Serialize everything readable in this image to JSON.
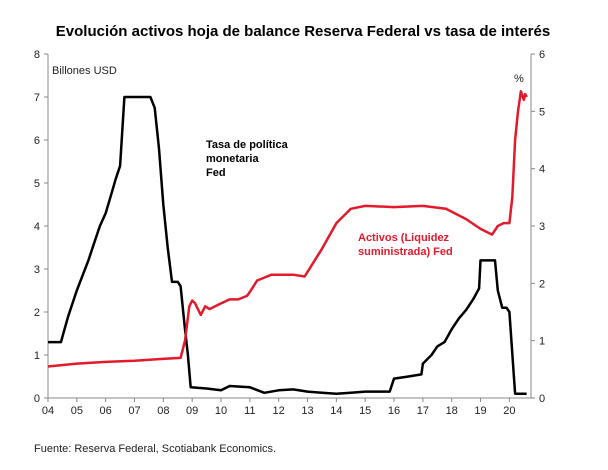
{
  "chart_data": {
    "type": "line",
    "title": "Evolución activos hoja de balance Reserva Federal vs tasa de interés",
    "left_axis_label": "Billones USD",
    "right_axis_label": "%",
    "x_ticks": [
      "04",
      "05",
      "06",
      "07",
      "08",
      "09",
      "10",
      "11",
      "12",
      "13",
      "14",
      "15",
      "16",
      "17",
      "18",
      "19",
      "20"
    ],
    "xlim": [
      2004.0,
      2020.75
    ],
    "ylim_left": [
      0,
      8
    ],
    "ylim_right": [
      0,
      6
    ],
    "y_ticks_left": [
      "0",
      "1",
      "2",
      "3",
      "4",
      "5",
      "6",
      "7",
      "8"
    ],
    "y_ticks_right": [
      "0",
      "1",
      "2",
      "3",
      "4",
      "5",
      "6"
    ],
    "annotations": [
      {
        "text": "Tasa de política",
        "color": "#000000"
      },
      {
        "text": "monetaria",
        "color": "#000000"
      },
      {
        "text": "Fed",
        "color": "#000000"
      },
      {
        "text": "Activos (Liquidez",
        "color": "#e3192c"
      },
      {
        "text": "suministrada) Fed",
        "color": "#e3192c"
      }
    ],
    "series": [
      {
        "axis": "left",
        "color": "#000000",
        "points": [
          [
            2004.0,
            1.3
          ],
          [
            2004.45,
            1.3
          ],
          [
            2004.55,
            1.55
          ],
          [
            2004.7,
            1.9
          ],
          [
            2004.85,
            2.2
          ],
          [
            2005.0,
            2.5
          ],
          [
            2005.2,
            2.85
          ],
          [
            2005.4,
            3.2
          ],
          [
            2005.6,
            3.6
          ],
          [
            2005.8,
            4.0
          ],
          [
            2006.0,
            4.3
          ],
          [
            2006.2,
            4.75
          ],
          [
            2006.35,
            5.1
          ],
          [
            2006.5,
            5.4
          ],
          [
            2006.65,
            7.0
          ],
          [
            2007.0,
            7.0
          ],
          [
            2007.55,
            7.0
          ],
          [
            2007.7,
            6.75
          ],
          [
            2007.85,
            5.8
          ],
          [
            2008.0,
            4.5
          ],
          [
            2008.15,
            3.5
          ],
          [
            2008.3,
            2.7
          ],
          [
            2008.5,
            2.7
          ],
          [
            2008.6,
            2.6
          ],
          [
            2008.75,
            1.6
          ],
          [
            2008.85,
            1.0
          ],
          [
            2008.95,
            0.25
          ],
          [
            2009.5,
            0.22
          ],
          [
            2010.0,
            0.18
          ],
          [
            2010.3,
            0.28
          ],
          [
            2011.0,
            0.25
          ],
          [
            2011.5,
            0.12
          ],
          [
            2012.0,
            0.18
          ],
          [
            2012.5,
            0.2
          ],
          [
            2013.0,
            0.15
          ],
          [
            2013.5,
            0.12
          ],
          [
            2014.0,
            0.1
          ],
          [
            2014.5,
            0.12
          ],
          [
            2015.0,
            0.15
          ],
          [
            2015.85,
            0.15
          ],
          [
            2016.0,
            0.45
          ],
          [
            2016.5,
            0.5
          ],
          [
            2016.95,
            0.55
          ],
          [
            2017.0,
            0.8
          ],
          [
            2017.3,
            1.0
          ],
          [
            2017.5,
            1.2
          ],
          [
            2017.75,
            1.3
          ],
          [
            2018.0,
            1.6
          ],
          [
            2018.25,
            1.85
          ],
          [
            2018.5,
            2.05
          ],
          [
            2018.75,
            2.3
          ],
          [
            2018.95,
            2.55
          ],
          [
            2019.0,
            3.2
          ],
          [
            2019.5,
            3.2
          ],
          [
            2019.6,
            2.5
          ],
          [
            2019.75,
            2.1
          ],
          [
            2019.9,
            2.1
          ],
          [
            2020.0,
            2.0
          ],
          [
            2020.2,
            0.1
          ],
          [
            2020.6,
            0.1
          ]
        ]
      },
      {
        "axis": "right",
        "color": "#e3192c",
        "points": [
          [
            2004.0,
            0.55
          ],
          [
            2005.0,
            0.6
          ],
          [
            2006.0,
            0.63
          ],
          [
            2007.0,
            0.65
          ],
          [
            2007.9,
            0.68
          ],
          [
            2008.6,
            0.7
          ],
          [
            2008.75,
            1.0
          ],
          [
            2008.9,
            1.6
          ],
          [
            2009.0,
            1.7
          ],
          [
            2009.1,
            1.65
          ],
          [
            2009.3,
            1.45
          ],
          [
            2009.45,
            1.6
          ],
          [
            2009.6,
            1.55
          ],
          [
            2009.8,
            1.6
          ],
          [
            2010.0,
            1.65
          ],
          [
            2010.3,
            1.72
          ],
          [
            2010.6,
            1.72
          ],
          [
            2010.9,
            1.78
          ],
          [
            2011.0,
            1.85
          ],
          [
            2011.25,
            2.05
          ],
          [
            2011.5,
            2.1
          ],
          [
            2011.75,
            2.15
          ],
          [
            2012.0,
            2.15
          ],
          [
            2012.5,
            2.15
          ],
          [
            2012.9,
            2.12
          ],
          [
            2013.0,
            2.2
          ],
          [
            2013.5,
            2.6
          ],
          [
            2014.0,
            3.05
          ],
          [
            2014.5,
            3.3
          ],
          [
            2015.0,
            3.35
          ],
          [
            2016.0,
            3.33
          ],
          [
            2017.0,
            3.35
          ],
          [
            2017.8,
            3.3
          ],
          [
            2018.5,
            3.12
          ],
          [
            2019.0,
            2.95
          ],
          [
            2019.4,
            2.85
          ],
          [
            2019.6,
            3.0
          ],
          [
            2019.8,
            3.05
          ],
          [
            2020.0,
            3.05
          ],
          [
            2020.1,
            3.5
          ],
          [
            2020.2,
            4.5
          ],
          [
            2020.3,
            5.0
          ],
          [
            2020.4,
            5.35
          ],
          [
            2020.5,
            5.2
          ],
          [
            2020.55,
            5.3
          ],
          [
            2020.6,
            5.25
          ]
        ]
      }
    ]
  },
  "source_text": "Fuente: Reserva Federal, Scotiabank Economics."
}
